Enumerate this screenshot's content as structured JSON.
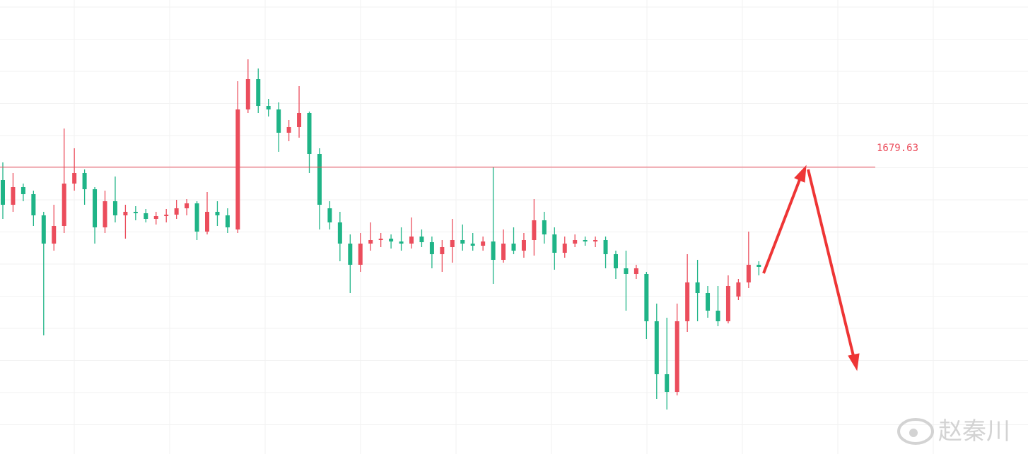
{
  "chart_data": {
    "type": "candlestick",
    "up_color": "#eb4d5c",
    "down_color": "#1fb487",
    "ylim": [
      1639.0,
      1703.3
    ],
    "price_line": {
      "value": 1679.63,
      "color": "#eb4d5c"
    },
    "series": [
      {
        "open": [
          1677.8,
          1674.3,
          1676.8,
          1675.8,
          1672.8,
          1668.8,
          1671.3,
          1677.3,
          1678.8,
          1676.5,
          1671.1,
          1674.8,
          1672.8,
          1673.3,
          1673.1,
          1672.3,
          1672.7,
          1672.9,
          1673.8,
          1674.5,
          1670.5,
          1673.3,
          1672.8,
          1670.8,
          1687.8,
          1692.1,
          1688.3,
          1687.8,
          1684.5,
          1685.3,
          1687.3,
          1681.5,
          1673.8,
          1671.8,
          1668.8,
          1665.8,
          1668.8,
          1669.3,
          1669.5,
          1669.1,
          1668.8,
          1669.8,
          1669.0,
          1667.3,
          1668.3,
          1669.3,
          1668.8,
          1668.5,
          1669.1,
          1666.5,
          1668.8,
          1667.8,
          1669.3,
          1672.1,
          1670.1,
          1667.5,
          1668.8,
          1669.3,
          1669.1,
          1669.3,
          1667.3,
          1665.3,
          1664.5,
          1664.5,
          1657.8,
          1650.3,
          1647.8,
          1657.8,
          1663.3,
          1661.8,
          1659.3,
          1657.8,
          1661.3,
          1663.3,
          1665.8
        ],
        "high": [
          1680.3,
          1678.8,
          1677.3,
          1676.3,
          1673.3,
          1674.3,
          1685.1,
          1682.3,
          1679.3,
          1676.8,
          1676.3,
          1678.3,
          1674.3,
          1674.1,
          1673.7,
          1673.3,
          1673.7,
          1675.0,
          1675.1,
          1674.8,
          1676.1,
          1674.8,
          1673.8,
          1691.8,
          1694.9,
          1693.6,
          1689.3,
          1688.8,
          1686.3,
          1691.1,
          1687.5,
          1682.3,
          1674.8,
          1673.3,
          1670.1,
          1670.3,
          1671.8,
          1670.3,
          1670.1,
          1671.1,
          1672.5,
          1670.8,
          1669.8,
          1669.3,
          1672.3,
          1671.5,
          1670.3,
          1669.8,
          1679.6,
          1670.8,
          1671.1,
          1670.3,
          1675.1,
          1673.3,
          1671.1,
          1669.8,
          1670.1,
          1669.8,
          1669.8,
          1669.8,
          1667.8,
          1667.8,
          1665.8,
          1664.8,
          1660.3,
          1658.3,
          1660.3,
          1667.3,
          1666.5,
          1662.8,
          1662.8,
          1664.3,
          1663.8,
          1670.5,
          1666.3
        ],
        "low": [
          1672.3,
          1673.3,
          1674.8,
          1671.3,
          1655.8,
          1667.8,
          1670.3,
          1676.3,
          1674.3,
          1668.8,
          1670.3,
          1671.8,
          1669.5,
          1672.1,
          1671.8,
          1671.5,
          1671.8,
          1672.3,
          1672.8,
          1669.3,
          1670.1,
          1671.3,
          1670.3,
          1670.3,
          1687.3,
          1687.3,
          1686.8,
          1681.8,
          1683.3,
          1683.8,
          1678.8,
          1670.8,
          1670.8,
          1666.3,
          1661.8,
          1664.8,
          1667.8,
          1668.3,
          1668.1,
          1667.8,
          1668.1,
          1668.3,
          1665.3,
          1664.8,
          1666.1,
          1667.8,
          1667.8,
          1667.8,
          1663.1,
          1666.1,
          1667.3,
          1666.8,
          1667.1,
          1668.8,
          1665.1,
          1666.8,
          1668.3,
          1668.5,
          1668.3,
          1665.3,
          1663.8,
          1659.3,
          1663.8,
          1655.3,
          1646.8,
          1645.3,
          1647.3,
          1656.3,
          1657.8,
          1658.3,
          1657.1,
          1657.5,
          1660.8,
          1662.5,
          1664.3
        ],
        "close": [
          1674.3,
          1676.8,
          1675.8,
          1672.8,
          1668.8,
          1671.3,
          1677.3,
          1678.8,
          1676.5,
          1671.1,
          1674.8,
          1672.8,
          1673.3,
          1673.1,
          1672.3,
          1672.7,
          1672.9,
          1673.8,
          1674.5,
          1670.5,
          1673.3,
          1672.8,
          1671.1,
          1687.8,
          1692.1,
          1688.3,
          1687.8,
          1684.5,
          1685.3,
          1687.3,
          1681.5,
          1674.3,
          1671.8,
          1668.8,
          1665.8,
          1668.8,
          1669.3,
          1669.5,
          1669.1,
          1668.8,
          1669.8,
          1669.0,
          1667.3,
          1668.3,
          1669.3,
          1668.8,
          1668.5,
          1669.1,
          1666.5,
          1668.8,
          1667.8,
          1669.3,
          1672.1,
          1670.1,
          1667.5,
          1668.8,
          1669.3,
          1669.1,
          1669.3,
          1667.3,
          1665.3,
          1664.5,
          1665.3,
          1657.8,
          1650.3,
          1647.8,
          1657.8,
          1663.3,
          1661.8,
          1659.3,
          1657.8,
          1662.8,
          1663.3,
          1665.8,
          1665.5
        ]
      }
    ]
  },
  "watermark": "赵秦川"
}
